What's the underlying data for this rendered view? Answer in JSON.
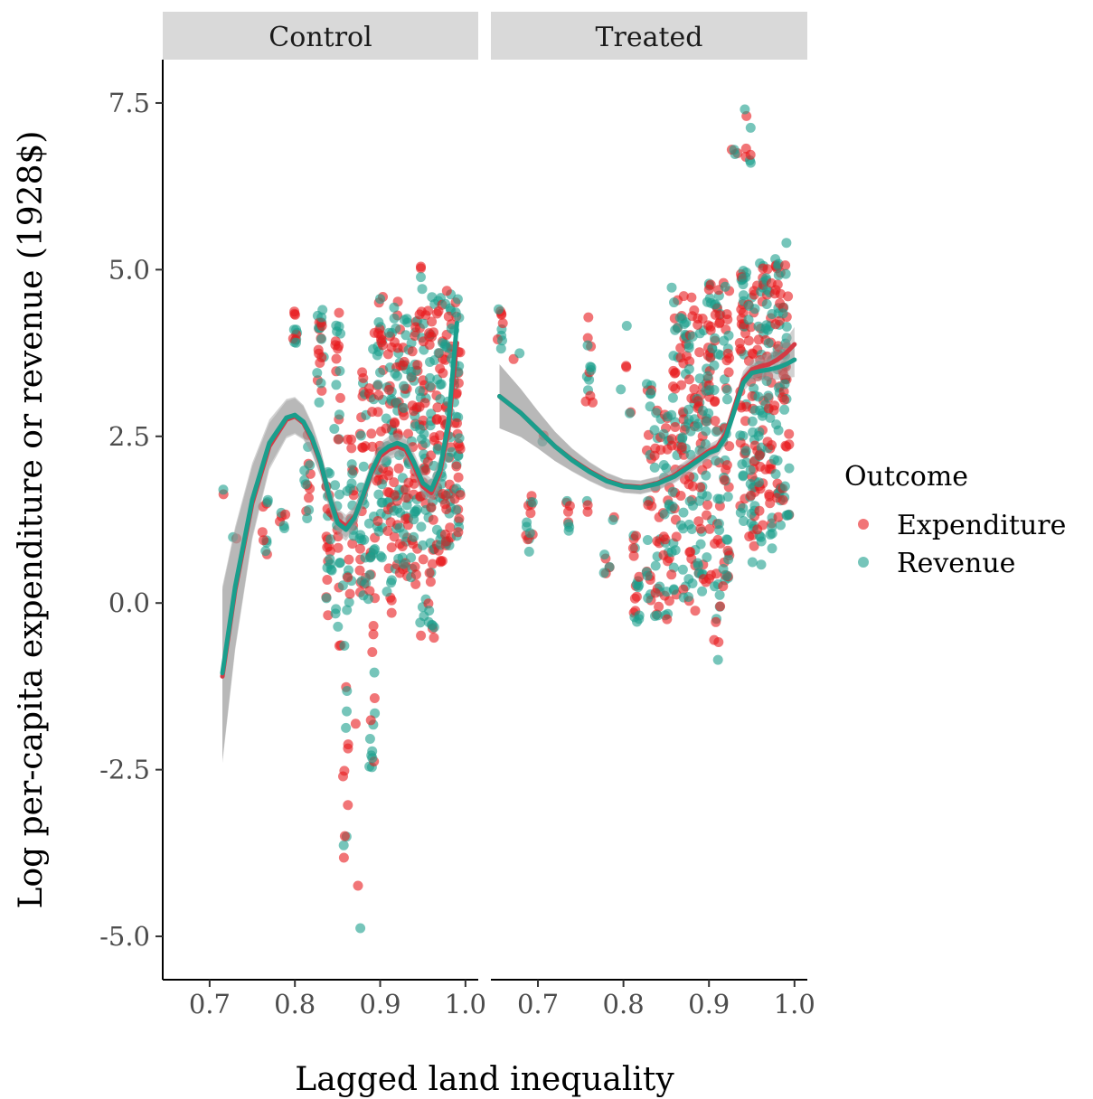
{
  "chart_data": {
    "type": "scatter",
    "facets": [
      "Control",
      "Treated"
    ],
    "xlabel": "Lagged land inequality",
    "ylabel": "Log per-capita expenditure or revenue (1928$)",
    "xlim": [
      0.645,
      1.015
    ],
    "ylim": [
      -5.65,
      8.15
    ],
    "x_ticks": [
      0.7,
      0.8,
      0.9,
      1.0
    ],
    "x_tick_labels": [
      "0.7",
      "0.8",
      "0.9",
      "1.0"
    ],
    "y_ticks": [
      7.5,
      5.0,
      2.5,
      0.0,
      -2.5,
      -5.0
    ],
    "y_tick_labels": [
      "7.5",
      "5.0",
      "2.5",
      "0.0",
      "-2.5",
      "-5.0"
    ],
    "grid": false,
    "legend": {
      "title": "Outcome",
      "position": "right",
      "entries": [
        {
          "label": "Expenditure",
          "color": "#E8191C"
        },
        {
          "label": "Revenue",
          "color": "#1A9E8C"
        }
      ]
    },
    "colors": {
      "expenditure": "#E8191C",
      "revenue": "#1A9E8C",
      "ribbon": "#999999",
      "strip": "#D9D9D9"
    },
    "panels": [
      {
        "facet": "Control",
        "point_clusters": [
          {
            "x": 0.715,
            "y_range": [
              1.6,
              1.7
            ],
            "n": 2
          },
          {
            "x": 0.73,
            "y_range": [
              0.9,
              1.0
            ],
            "n": 2
          },
          {
            "x": 0.765,
            "y_range": [
              0.5,
              1.7
            ],
            "n": 10
          },
          {
            "x": 0.785,
            "y_range": [
              1.0,
              1.7
            ],
            "n": 6
          },
          {
            "x": 0.8,
            "y_range": [
              3.9,
              4.4
            ],
            "n": 12
          },
          {
            "x": 0.815,
            "y_range": [
              0.9,
              2.6
            ],
            "n": 14
          },
          {
            "x": 0.83,
            "y_range": [
              3.0,
              4.4
            ],
            "n": 22
          },
          {
            "x": 0.84,
            "y_range": [
              -0.2,
              2.0
            ],
            "n": 26
          },
          {
            "x": 0.85,
            "y_range": [
              -0.8,
              4.4
            ],
            "n": 36
          },
          {
            "x": 0.86,
            "y_range": [
              -4.0,
              0.3
            ],
            "n": 16
          },
          {
            "x": 0.865,
            "y_range": [
              0.0,
              2.5
            ],
            "n": 28
          },
          {
            "x": 0.875,
            "y_range": [
              -5.1,
              -1.2
            ],
            "n": 3
          },
          {
            "x": 0.88,
            "y_range": [
              0.0,
              3.6
            ],
            "n": 34
          },
          {
            "x": 0.89,
            "y_range": [
              -2.5,
              4.3
            ],
            "n": 40
          },
          {
            "x": 0.9,
            "y_range": [
              0.6,
              4.6
            ],
            "n": 44
          },
          {
            "x": 0.91,
            "y_range": [
              -0.2,
              4.2
            ],
            "n": 40
          },
          {
            "x": 0.92,
            "y_range": [
              0.4,
              4.8
            ],
            "n": 44
          },
          {
            "x": 0.93,
            "y_range": [
              0.4,
              4.7
            ],
            "n": 44
          },
          {
            "x": 0.94,
            "y_range": [
              0.2,
              4.4
            ],
            "n": 44
          },
          {
            "x": 0.95,
            "y_range": [
              -0.5,
              5.2
            ],
            "n": 48
          },
          {
            "x": 0.96,
            "y_range": [
              -0.8,
              4.8
            ],
            "n": 48
          },
          {
            "x": 0.97,
            "y_range": [
              0.6,
              4.7
            ],
            "n": 44
          },
          {
            "x": 0.98,
            "y_range": [
              0.8,
              4.7
            ],
            "n": 48
          },
          {
            "x": 0.99,
            "y_range": [
              1.0,
              4.7
            ],
            "n": 44
          }
        ],
        "smooth": {
          "x": [
            0.715,
            0.73,
            0.75,
            0.77,
            0.79,
            0.8,
            0.81,
            0.82,
            0.83,
            0.84,
            0.85,
            0.86,
            0.87,
            0.88,
            0.89,
            0.9,
            0.91,
            0.92,
            0.93,
            0.94,
            0.95,
            0.96,
            0.97,
            0.98,
            0.99
          ],
          "expenditure": [
            -1.1,
            0.2,
            1.5,
            2.35,
            2.75,
            2.8,
            2.7,
            2.45,
            2.1,
            1.6,
            1.25,
            1.15,
            1.3,
            1.6,
            1.95,
            2.2,
            2.3,
            2.35,
            2.3,
            2.05,
            1.75,
            1.65,
            1.95,
            2.6,
            3.9
          ],
          "revenue": [
            -1.05,
            0.25,
            1.55,
            2.4,
            2.78,
            2.82,
            2.72,
            2.48,
            2.12,
            1.62,
            1.2,
            1.1,
            1.28,
            1.62,
            1.98,
            2.25,
            2.35,
            2.4,
            2.35,
            2.1,
            1.8,
            1.7,
            2.0,
            2.7,
            4.2
          ],
          "se": [
            1.3,
            0.9,
            0.55,
            0.35,
            0.28,
            0.27,
            0.25,
            0.22,
            0.2,
            0.18,
            0.17,
            0.17,
            0.16,
            0.15,
            0.15,
            0.15,
            0.15,
            0.15,
            0.15,
            0.15,
            0.16,
            0.17,
            0.2,
            0.26,
            0.35
          ]
        }
      },
      {
        "facet": "Treated",
        "point_clusters": [
          {
            "x": 0.655,
            "y_range": [
              3.8,
              4.5
            ],
            "n": 10
          },
          {
            "x": 0.675,
            "y_range": [
              3.6,
              3.8
            ],
            "n": 2
          },
          {
            "x": 0.69,
            "y_range": [
              0.7,
              1.7
            ],
            "n": 14
          },
          {
            "x": 0.705,
            "y_range": [
              2.3,
              2.6
            ],
            "n": 2
          },
          {
            "x": 0.735,
            "y_range": [
              0.9,
              1.6
            ],
            "n": 8
          },
          {
            "x": 0.76,
            "y_range": [
              3.0,
              4.4
            ],
            "n": 14
          },
          {
            "x": 0.76,
            "y_range": [
              1.3,
              1.6
            ],
            "n": 3
          },
          {
            "x": 0.78,
            "y_range": [
              0.4,
              0.8
            ],
            "n": 6
          },
          {
            "x": 0.79,
            "y_range": [
              1.2,
              1.3
            ],
            "n": 2
          },
          {
            "x": 0.8,
            "y_range": [
              3.2,
              4.3
            ],
            "n": 4
          },
          {
            "x": 0.81,
            "y_range": [
              2.7,
              2.9
            ],
            "n": 2
          },
          {
            "x": 0.815,
            "y_range": [
              -0.3,
              1.2
            ],
            "n": 20
          },
          {
            "x": 0.83,
            "y_range": [
              0.0,
              3.3
            ],
            "n": 24
          },
          {
            "x": 0.84,
            "y_range": [
              -0.2,
              3.0
            ],
            "n": 26
          },
          {
            "x": 0.85,
            "y_range": [
              -0.3,
              3.0
            ],
            "n": 30
          },
          {
            "x": 0.86,
            "y_range": [
              0.0,
              4.8
            ],
            "n": 38
          },
          {
            "x": 0.87,
            "y_range": [
              0.0,
              4.9
            ],
            "n": 40
          },
          {
            "x": 0.88,
            "y_range": [
              -0.6,
              4.6
            ],
            "n": 40
          },
          {
            "x": 0.89,
            "y_range": [
              0.0,
              4.9
            ],
            "n": 40
          },
          {
            "x": 0.9,
            "y_range": [
              0.3,
              4.8
            ],
            "n": 44
          },
          {
            "x": 0.91,
            "y_range": [
              -0.9,
              4.7
            ],
            "n": 44
          },
          {
            "x": 0.92,
            "y_range": [
              0.2,
              4.9
            ],
            "n": 44
          },
          {
            "x": 0.93,
            "y_range": [
              6.6,
              6.85
            ],
            "n": 4
          },
          {
            "x": 0.945,
            "y_range": [
              6.6,
              7.5
            ],
            "n": 8
          },
          {
            "x": 0.94,
            "y_range": [
              0.9,
              5.0
            ],
            "n": 46
          },
          {
            "x": 0.95,
            "y_range": [
              0.6,
              5.1
            ],
            "n": 48
          },
          {
            "x": 0.96,
            "y_range": [
              0.5,
              5.2
            ],
            "n": 48
          },
          {
            "x": 0.97,
            "y_range": [
              0.8,
              5.2
            ],
            "n": 46
          },
          {
            "x": 0.98,
            "y_range": [
              1.1,
              5.2
            ],
            "n": 44
          },
          {
            "x": 0.99,
            "y_range": [
              1.3,
              5.5
            ],
            "n": 40
          }
        ],
        "smooth": {
          "x": [
            0.655,
            0.68,
            0.7,
            0.72,
            0.74,
            0.76,
            0.78,
            0.8,
            0.82,
            0.84,
            0.86,
            0.88,
            0.9,
            0.91,
            0.92,
            0.93,
            0.94,
            0.95,
            0.96,
            0.97,
            0.98,
            0.99,
            1.0
          ],
          "expenditure": [
            3.1,
            2.85,
            2.6,
            2.35,
            2.15,
            1.98,
            1.84,
            1.76,
            1.74,
            1.8,
            1.92,
            2.1,
            2.28,
            2.35,
            2.55,
            2.95,
            3.35,
            3.5,
            3.55,
            3.58,
            3.65,
            3.75,
            3.88
          ],
          "revenue": [
            3.1,
            2.85,
            2.6,
            2.35,
            2.14,
            1.97,
            1.83,
            1.75,
            1.73,
            1.79,
            1.9,
            2.07,
            2.25,
            2.3,
            2.5,
            2.9,
            3.3,
            3.45,
            3.48,
            3.5,
            3.53,
            3.58,
            3.65
          ],
          "se": [
            0.48,
            0.36,
            0.28,
            0.22,
            0.17,
            0.14,
            0.12,
            0.1,
            0.1,
            0.1,
            0.1,
            0.1,
            0.1,
            0.1,
            0.11,
            0.12,
            0.13,
            0.14,
            0.15,
            0.16,
            0.18,
            0.21,
            0.26
          ]
        }
      }
    ]
  }
}
